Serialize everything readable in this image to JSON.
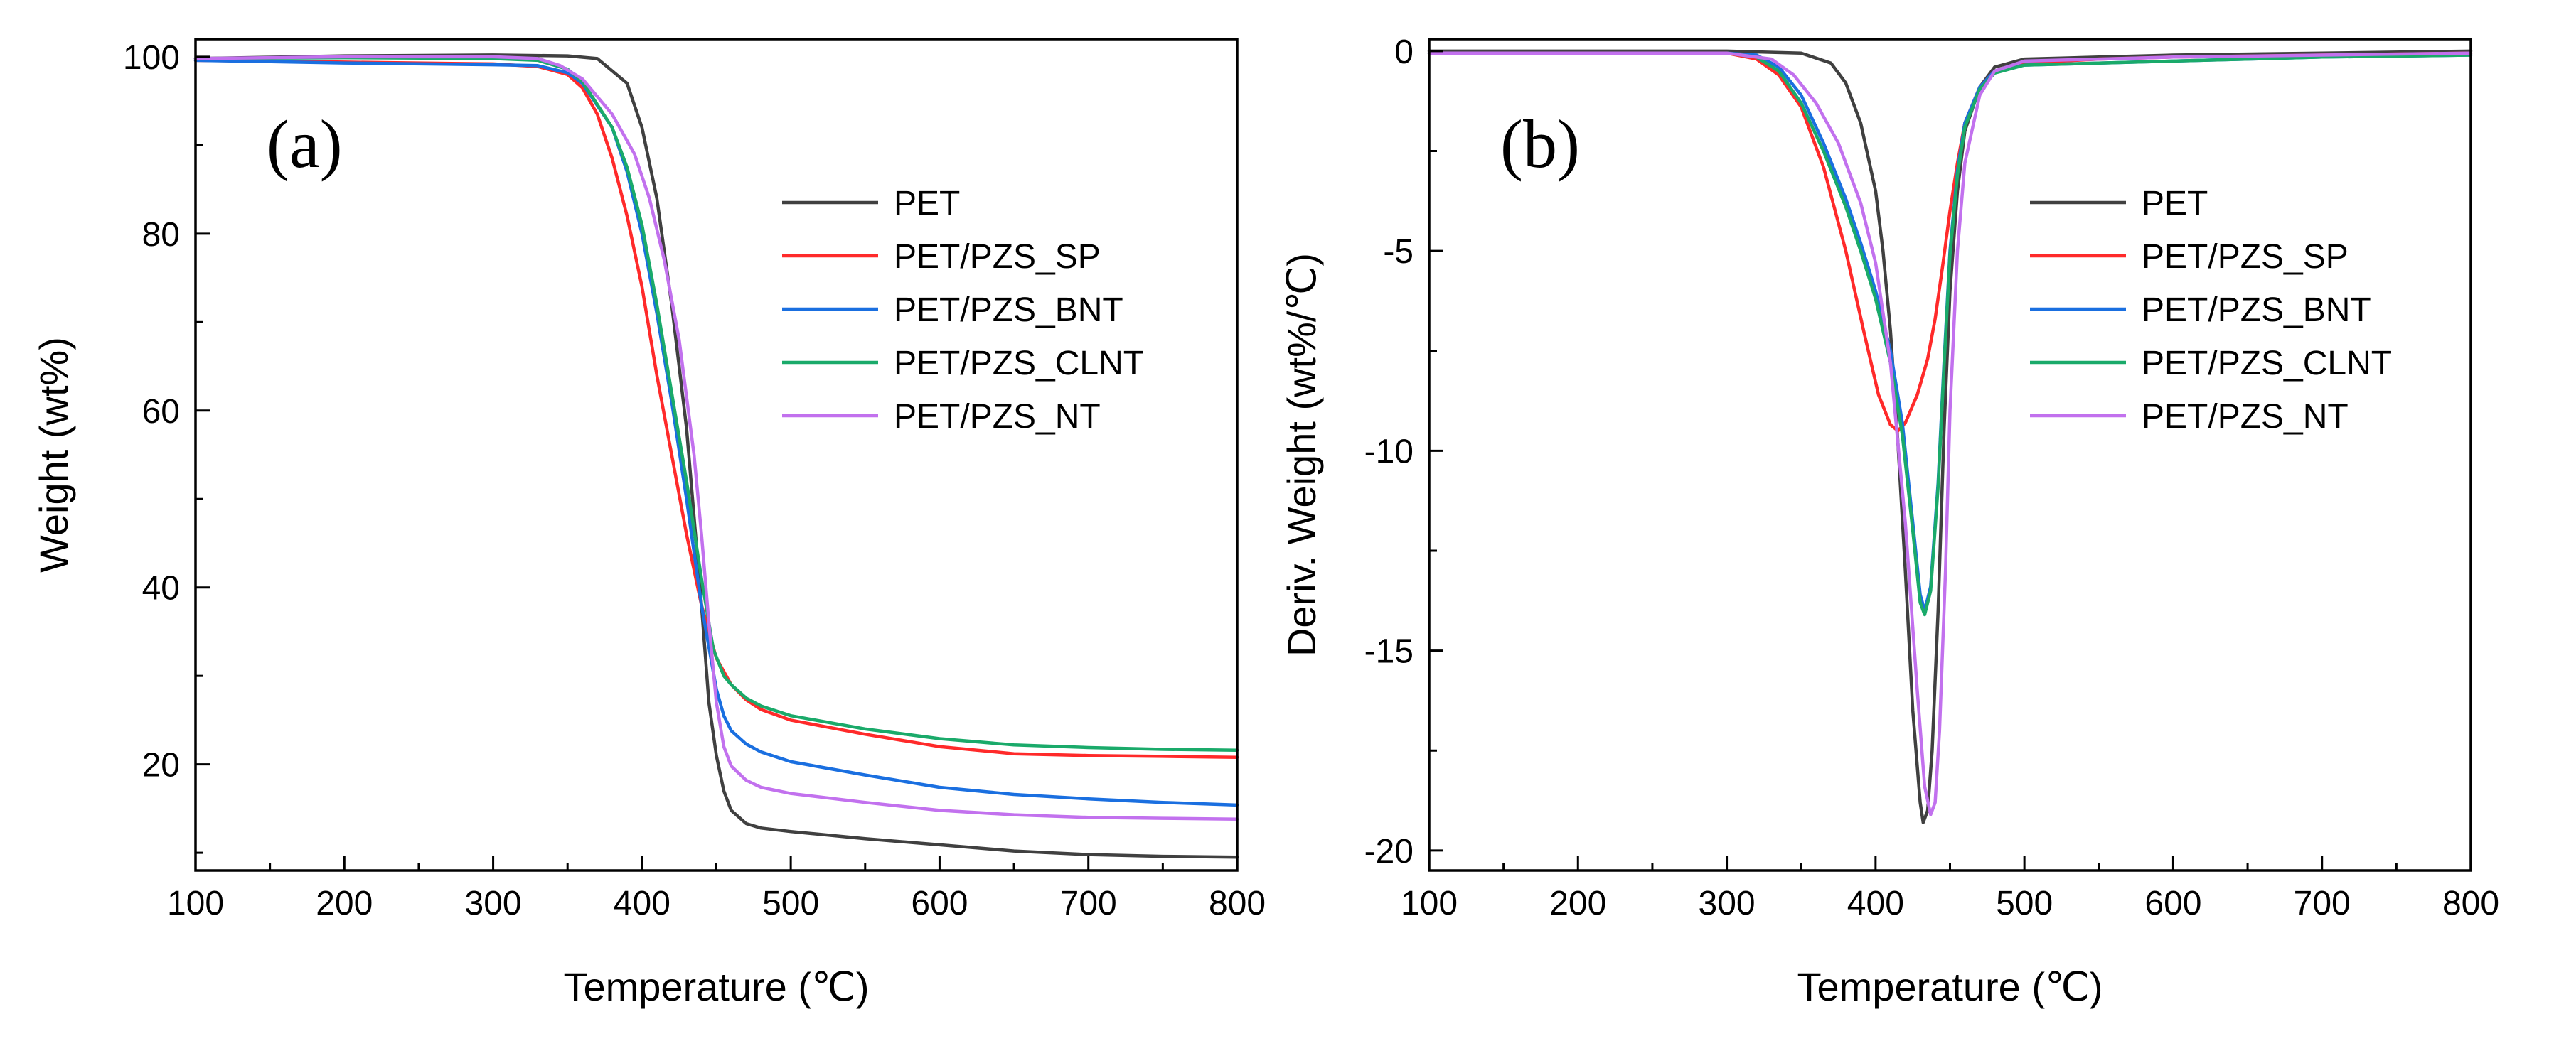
{
  "figure": {
    "background": "#ffffff"
  },
  "chart_data": [
    {
      "id": "a",
      "type": "line",
      "panel_label": "(a)",
      "xlabel": "Temperature (℃)",
      "ylabel": "Weight (wt%)",
      "xlim": [
        100,
        800
      ],
      "ylim": [
        8,
        102
      ],
      "xticks": [
        100,
        200,
        300,
        400,
        500,
        600,
        700,
        800
      ],
      "yticks": [
        20,
        40,
        60,
        80,
        100
      ],
      "grid": false,
      "legend_position": "center-right",
      "series": [
        {
          "name": "PET",
          "color": "#404040",
          "points": [
            [
              100,
              99.8
            ],
            [
              200,
              100.1
            ],
            [
              300,
              100.2
            ],
            [
              350,
              100.1
            ],
            [
              370,
              99.8
            ],
            [
              390,
              97
            ],
            [
              400,
              92
            ],
            [
              410,
              84
            ],
            [
              420,
              72
            ],
            [
              430,
              58
            ],
            [
              435,
              48
            ],
            [
              440,
              38
            ],
            [
              445,
              27
            ],
            [
              450,
              21
            ],
            [
              455,
              17
            ],
            [
              460,
              14.8
            ],
            [
              470,
              13.3
            ],
            [
              480,
              12.8
            ],
            [
              500,
              12.4
            ],
            [
              550,
              11.6
            ],
            [
              600,
              10.9
            ],
            [
              650,
              10.2
            ],
            [
              700,
              9.8
            ],
            [
              750,
              9.6
            ],
            [
              800,
              9.5
            ]
          ]
        },
        {
          "name": "PET/PZS_SP",
          "color": "#ff2a2a",
          "points": [
            [
              100,
              99.6
            ],
            [
              200,
              99.4
            ],
            [
              300,
              99.2
            ],
            [
              330,
              98.9
            ],
            [
              350,
              98.0
            ],
            [
              360,
              96.5
            ],
            [
              370,
              93.5
            ],
            [
              380,
              88.5
            ],
            [
              390,
              82
            ],
            [
              400,
              74
            ],
            [
              410,
              64
            ],
            [
              420,
              55
            ],
            [
              430,
              46
            ],
            [
              440,
              38
            ],
            [
              450,
              32
            ],
            [
              460,
              29
            ],
            [
              470,
              27.3
            ],
            [
              480,
              26.2
            ],
            [
              500,
              25.0
            ],
            [
              550,
              23.4
            ],
            [
              600,
              22.0
            ],
            [
              650,
              21.2
            ],
            [
              700,
              21.0
            ],
            [
              750,
              20.9
            ],
            [
              800,
              20.8
            ]
          ]
        },
        {
          "name": "PET/PZS_BNT",
          "color": "#1a6fe0",
          "points": [
            [
              100,
              99.6
            ],
            [
              200,
              99.3
            ],
            [
              300,
              99.1
            ],
            [
              330,
              99.0
            ],
            [
              350,
              98.2
            ],
            [
              360,
              97.0
            ],
            [
              380,
              92.0
            ],
            [
              390,
              87
            ],
            [
              400,
              80
            ],
            [
              410,
              71
            ],
            [
              420,
              61
            ],
            [
              430,
              50
            ],
            [
              440,
              38
            ],
            [
              450,
              28.5
            ],
            [
              455,
              25.5
            ],
            [
              460,
              23.8
            ],
            [
              470,
              22.3
            ],
            [
              480,
              21.4
            ],
            [
              500,
              20.3
            ],
            [
              550,
              18.8
            ],
            [
              600,
              17.4
            ],
            [
              650,
              16.6
            ],
            [
              700,
              16.1
            ],
            [
              750,
              15.7
            ],
            [
              800,
              15.4
            ]
          ]
        },
        {
          "name": "PET/PZS_CLNT",
          "color": "#1aaa6a",
          "points": [
            [
              100,
              99.8
            ],
            [
              200,
              99.9
            ],
            [
              300,
              99.8
            ],
            [
              330,
              99.6
            ],
            [
              350,
              98.6
            ],
            [
              360,
              97.2
            ],
            [
              380,
              92.0
            ],
            [
              390,
              87.5
            ],
            [
              400,
              81
            ],
            [
              410,
              72
            ],
            [
              420,
              62
            ],
            [
              430,
              52
            ],
            [
              440,
              41
            ],
            [
              448,
              33
            ],
            [
              455,
              30
            ],
            [
              460,
              29
            ],
            [
              470,
              27.5
            ],
            [
              480,
              26.6
            ],
            [
              500,
              25.5
            ],
            [
              550,
              24.0
            ],
            [
              600,
              22.9
            ],
            [
              650,
              22.2
            ],
            [
              700,
              21.9
            ],
            [
              750,
              21.7
            ],
            [
              800,
              21.6
            ]
          ]
        },
        {
          "name": "PET/PZS_NT",
          "color": "#c271ee",
          "points": [
            [
              100,
              99.8
            ],
            [
              200,
              100.0
            ],
            [
              300,
              100.0
            ],
            [
              330,
              99.8
            ],
            [
              345,
              99.0
            ],
            [
              360,
              97.5
            ],
            [
              380,
              93.5
            ],
            [
              395,
              89
            ],
            [
              405,
              84
            ],
            [
              415,
              77
            ],
            [
              425,
              68
            ],
            [
              435,
              55
            ],
            [
              440,
              46
            ],
            [
              445,
              36
            ],
            [
              450,
              27
            ],
            [
              455,
              22
            ],
            [
              460,
              19.8
            ],
            [
              470,
              18.2
            ],
            [
              480,
              17.4
            ],
            [
              500,
              16.7
            ],
            [
              550,
              15.7
            ],
            [
              600,
              14.8
            ],
            [
              650,
              14.3
            ],
            [
              700,
              14.0
            ],
            [
              750,
              13.9
            ],
            [
              800,
              13.8
            ]
          ]
        }
      ]
    },
    {
      "id": "b",
      "type": "line",
      "panel_label": "(b)",
      "xlabel": "Temperature (℃)",
      "ylabel": "Deriv. Weight (wt%/℃)",
      "xlim": [
        100,
        800
      ],
      "ylim": [
        -20.5,
        0.3
      ],
      "xticks": [
        100,
        200,
        300,
        400,
        500,
        600,
        700,
        800
      ],
      "yticks": [
        -20,
        -15,
        -10,
        -5,
        0
      ],
      "grid": false,
      "legend_position": "center-right",
      "series": [
        {
          "name": "PET",
          "color": "#404040",
          "points": [
            [
              100,
              0.0
            ],
            [
              300,
              0.0
            ],
            [
              350,
              -0.05
            ],
            [
              370,
              -0.3
            ],
            [
              380,
              -0.8
            ],
            [
              390,
              -1.8
            ],
            [
              400,
              -3.5
            ],
            [
              405,
              -5.0
            ],
            [
              410,
              -7.0
            ],
            [
              415,
              -9.8
            ],
            [
              420,
              -13.0
            ],
            [
              425,
              -16.5
            ],
            [
              430,
              -18.8
            ],
            [
              432,
              -19.3
            ],
            [
              435,
              -19.0
            ],
            [
              438,
              -17.5
            ],
            [
              442,
              -14.0
            ],
            [
              446,
              -9.5
            ],
            [
              450,
              -6.0
            ],
            [
              455,
              -3.5
            ],
            [
              460,
              -2.0
            ],
            [
              470,
              -0.9
            ],
            [
              480,
              -0.4
            ],
            [
              500,
              -0.2
            ],
            [
              550,
              -0.15
            ],
            [
              600,
              -0.1
            ],
            [
              700,
              -0.05
            ],
            [
              800,
              0.0
            ]
          ]
        },
        {
          "name": "PET/PZS_SP",
          "color": "#ff2a2a",
          "points": [
            [
              100,
              -0.05
            ],
            [
              300,
              -0.05
            ],
            [
              320,
              -0.2
            ],
            [
              335,
              -0.6
            ],
            [
              350,
              -1.4
            ],
            [
              365,
              -2.9
            ],
            [
              380,
              -5.0
            ],
            [
              392,
              -7.0
            ],
            [
              402,
              -8.6
            ],
            [
              410,
              -9.35
            ],
            [
              415,
              -9.5
            ],
            [
              420,
              -9.3
            ],
            [
              428,
              -8.6
            ],
            [
              435,
              -7.7
            ],
            [
              440,
              -6.7
            ],
            [
              445,
              -5.4
            ],
            [
              450,
              -4.0
            ],
            [
              455,
              -2.8
            ],
            [
              460,
              -1.8
            ],
            [
              470,
              -0.9
            ],
            [
              480,
              -0.5
            ],
            [
              500,
              -0.3
            ],
            [
              550,
              -0.2
            ],
            [
              600,
              -0.15
            ],
            [
              700,
              -0.1
            ],
            [
              800,
              -0.05
            ]
          ]
        },
        {
          "name": "PET/PZS_BNT",
          "color": "#1a6fe0",
          "points": [
            [
              100,
              -0.05
            ],
            [
              300,
              -0.05
            ],
            [
              320,
              -0.1
            ],
            [
              335,
              -0.4
            ],
            [
              350,
              -1.1
            ],
            [
              365,
              -2.3
            ],
            [
              380,
              -3.7
            ],
            [
              390,
              -4.8
            ],
            [
              400,
              -6.0
            ],
            [
              410,
              -7.5
            ],
            [
              418,
              -9.3
            ],
            [
              425,
              -11.8
            ],
            [
              430,
              -13.6
            ],
            [
              433,
              -14.0
            ],
            [
              437,
              -13.4
            ],
            [
              442,
              -10.8
            ],
            [
              446,
              -7.8
            ],
            [
              450,
              -5.0
            ],
            [
              455,
              -3.0
            ],
            [
              460,
              -1.8
            ],
            [
              470,
              -0.9
            ],
            [
              480,
              -0.5
            ],
            [
              500,
              -0.35
            ],
            [
              550,
              -0.3
            ],
            [
              600,
              -0.25
            ],
            [
              700,
              -0.15
            ],
            [
              800,
              -0.1
            ]
          ]
        },
        {
          "name": "PET/PZS_CLNT",
          "color": "#1aaa6a",
          "points": [
            [
              100,
              -0.05
            ],
            [
              300,
              -0.05
            ],
            [
              320,
              -0.15
            ],
            [
              335,
              -0.5
            ],
            [
              350,
              -1.3
            ],
            [
              365,
              -2.5
            ],
            [
              380,
              -3.9
            ],
            [
              390,
              -5.0
            ],
            [
              400,
              -6.2
            ],
            [
              410,
              -7.8
            ],
            [
              418,
              -9.6
            ],
            [
              425,
              -12.0
            ],
            [
              430,
              -13.8
            ],
            [
              433,
              -14.1
            ],
            [
              437,
              -13.5
            ],
            [
              442,
              -10.9
            ],
            [
              446,
              -7.9
            ],
            [
              450,
              -5.1
            ],
            [
              455,
              -3.1
            ],
            [
              460,
              -1.9
            ],
            [
              470,
              -0.95
            ],
            [
              480,
              -0.55
            ],
            [
              500,
              -0.35
            ],
            [
              550,
              -0.3
            ],
            [
              600,
              -0.25
            ],
            [
              700,
              -0.15
            ],
            [
              800,
              -0.1
            ]
          ]
        },
        {
          "name": "PET/PZS_NT",
          "color": "#c271ee",
          "points": [
            [
              100,
              -0.05
            ],
            [
              300,
              -0.05
            ],
            [
              330,
              -0.2
            ],
            [
              345,
              -0.6
            ],
            [
              360,
              -1.3
            ],
            [
              375,
              -2.3
            ],
            [
              390,
              -3.8
            ],
            [
              400,
              -5.3
            ],
            [
              410,
              -7.8
            ],
            [
              420,
              -11.8
            ],
            [
              428,
              -16.0
            ],
            [
              433,
              -18.4
            ],
            [
              437,
              -19.1
            ],
            [
              440,
              -18.8
            ],
            [
              443,
              -17.0
            ],
            [
              447,
              -13.0
            ],
            [
              450,
              -9.0
            ],
            [
              455,
              -5.0
            ],
            [
              460,
              -2.8
            ],
            [
              470,
              -1.1
            ],
            [
              480,
              -0.5
            ],
            [
              500,
              -0.25
            ],
            [
              550,
              -0.2
            ],
            [
              600,
              -0.15
            ],
            [
              700,
              -0.1
            ],
            [
              800,
              -0.05
            ]
          ]
        }
      ]
    }
  ]
}
